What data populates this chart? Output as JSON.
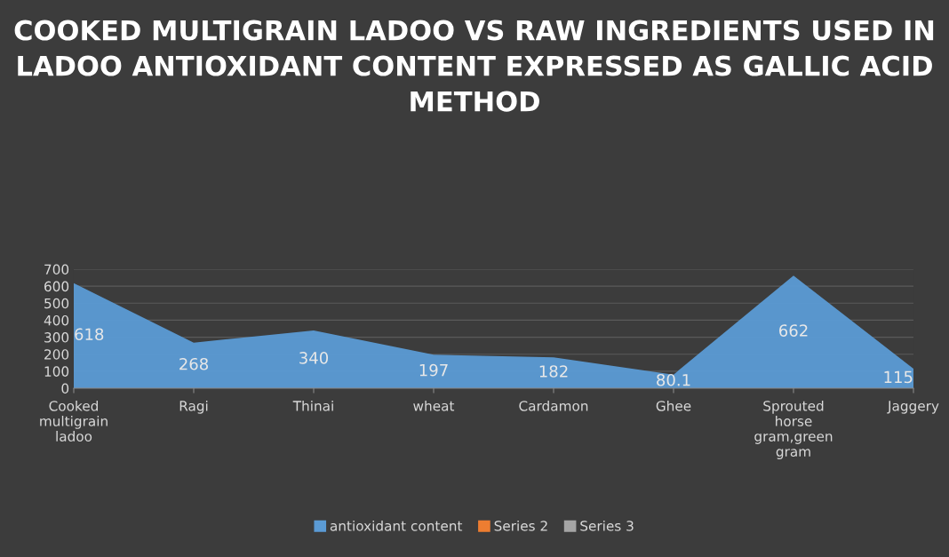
{
  "chart_data": {
    "type": "area",
    "title": "COOKED MULTIGRAIN LADOO VS RAW INGREDIENTS USED IN LADOO ANTIOXIDANT CONTENT EXPRESSED AS GALLIC ACID METHOD",
    "categories": [
      "Cooked multigrain ladoo",
      "Ragi",
      "Thinai",
      "wheat",
      "Cardamon",
      "Ghee",
      "Sprouted horse gram,green gram",
      "Jaggery"
    ],
    "series": [
      {
        "name": "antioxidant content",
        "color": "#5b9bd5",
        "values": [
          618,
          268,
          340,
          197,
          182,
          80.1,
          662,
          115
        ]
      },
      {
        "name": "Series 2",
        "color": "#ed7d31",
        "values": [
          null,
          null,
          null,
          null,
          null,
          null,
          null,
          null
        ]
      },
      {
        "name": "Series 3",
        "color": "#a5a5a5",
        "values": [
          null,
          null,
          null,
          null,
          null,
          null,
          null,
          null
        ]
      }
    ],
    "ylim": [
      0,
      700
    ],
    "yticks": [
      0,
      100,
      200,
      300,
      400,
      500,
      600,
      700
    ],
    "grid": "y",
    "legend": "bottom",
    "data_labels": true
  }
}
